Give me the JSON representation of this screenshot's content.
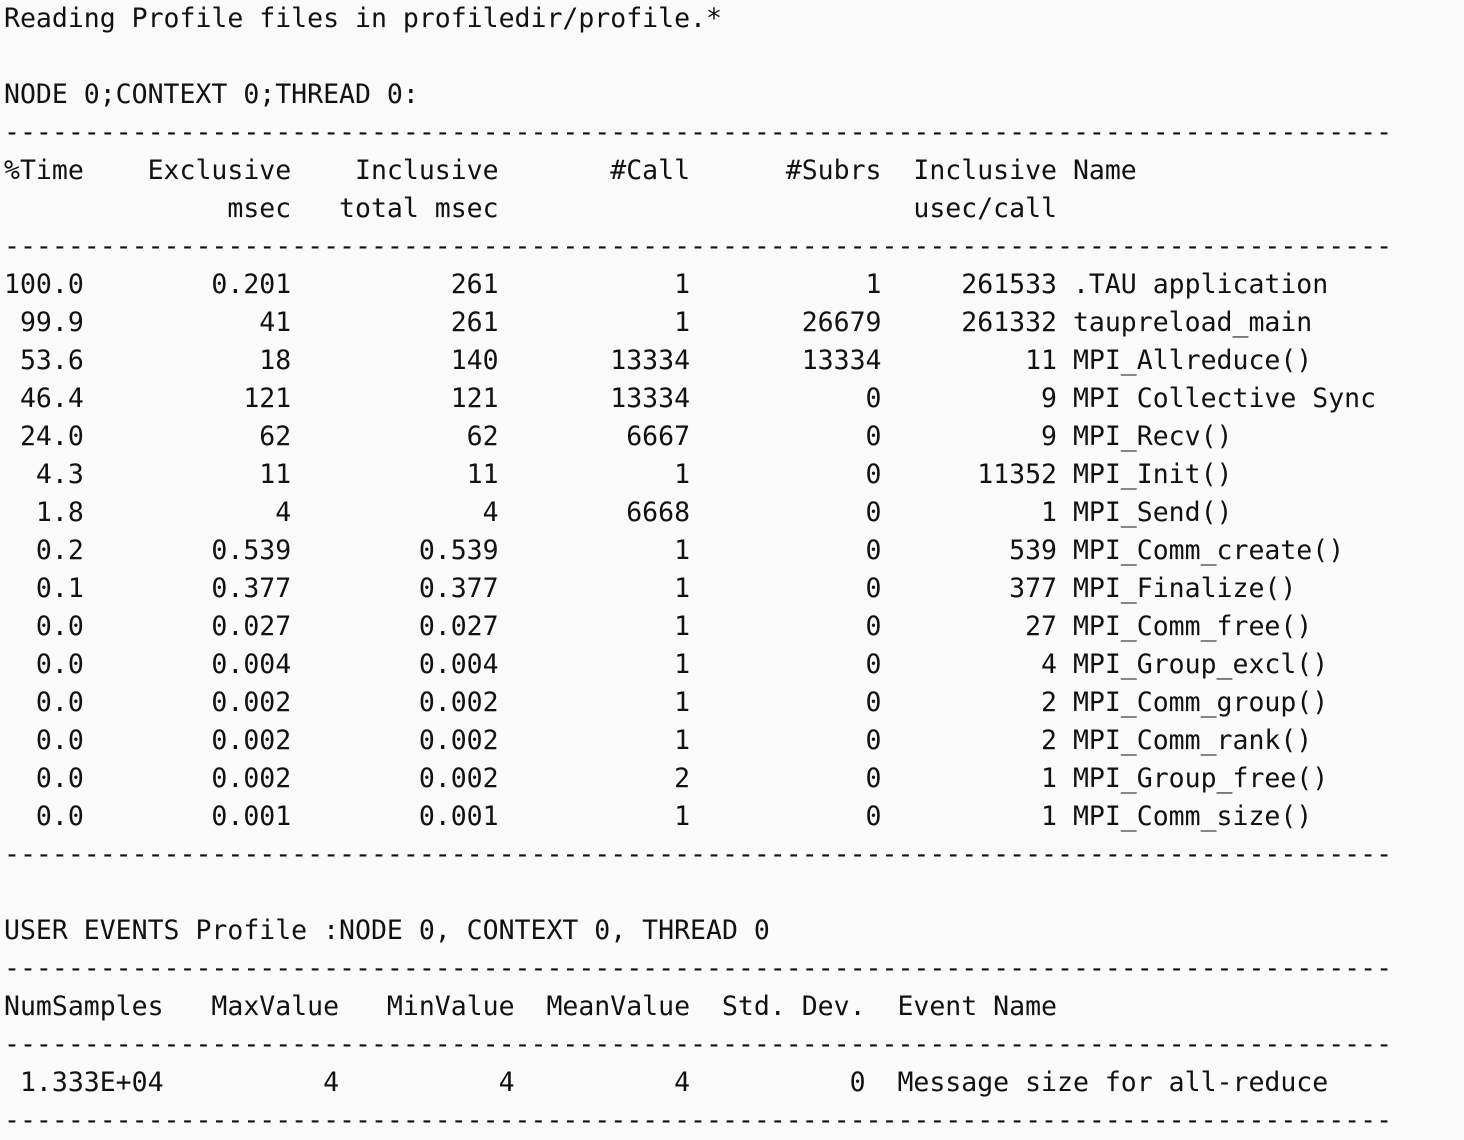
{
  "lines": [
    "Reading Profile files in profiledir/profile.*",
    "",
    "NODE 0;CONTEXT 0;THREAD 0:",
    "---------------------------------------------------------------------------------------",
    "%Time    Exclusive    Inclusive       #Call      #Subrs  Inclusive Name",
    "              msec   total msec                          usec/call ",
    "---------------------------------------------------------------------------------------",
    "100.0        0.201          261           1           1     261533 .TAU application",
    " 99.9           41          261           1       26679     261332 taupreload_main",
    " 53.6           18          140       13334       13334         11 MPI_Allreduce()",
    " 46.4          121          121       13334           0          9 MPI Collective Sync",
    " 24.0           62           62        6667           0          9 MPI_Recv()",
    "  4.3           11           11           1           0      11352 MPI_Init()",
    "  1.8            4            4        6668           0          1 MPI_Send()",
    "  0.2        0.539        0.539           1           0        539 MPI_Comm_create()",
    "  0.1        0.377        0.377           1           0        377 MPI_Finalize()",
    "  0.0        0.027        0.027           1           0         27 MPI_Comm_free()",
    "  0.0        0.004        0.004           1           0          4 MPI_Group_excl()",
    "  0.0        0.002        0.002           1           0          2 MPI_Comm_group()",
    "  0.0        0.002        0.002           1           0          2 MPI_Comm_rank()",
    "  0.0        0.002        0.002           2           0          1 MPI_Group_free()",
    "  0.0        0.001        0.001           1           0          1 MPI_Comm_size()",
    "---------------------------------------------------------------------------------------",
    "",
    "USER EVENTS Profile :NODE 0, CONTEXT 0, THREAD 0",
    "---------------------------------------------------------------------------------------",
    "NumSamples   MaxValue   MinValue  MeanValue  Std. Dev.  Event Name",
    "---------------------------------------------------------------------------------------",
    " 1.333E+04          4          4          4          0  Message size for all-reduce",
    "---------------------------------------------------------------------------------------"
  ]
}
